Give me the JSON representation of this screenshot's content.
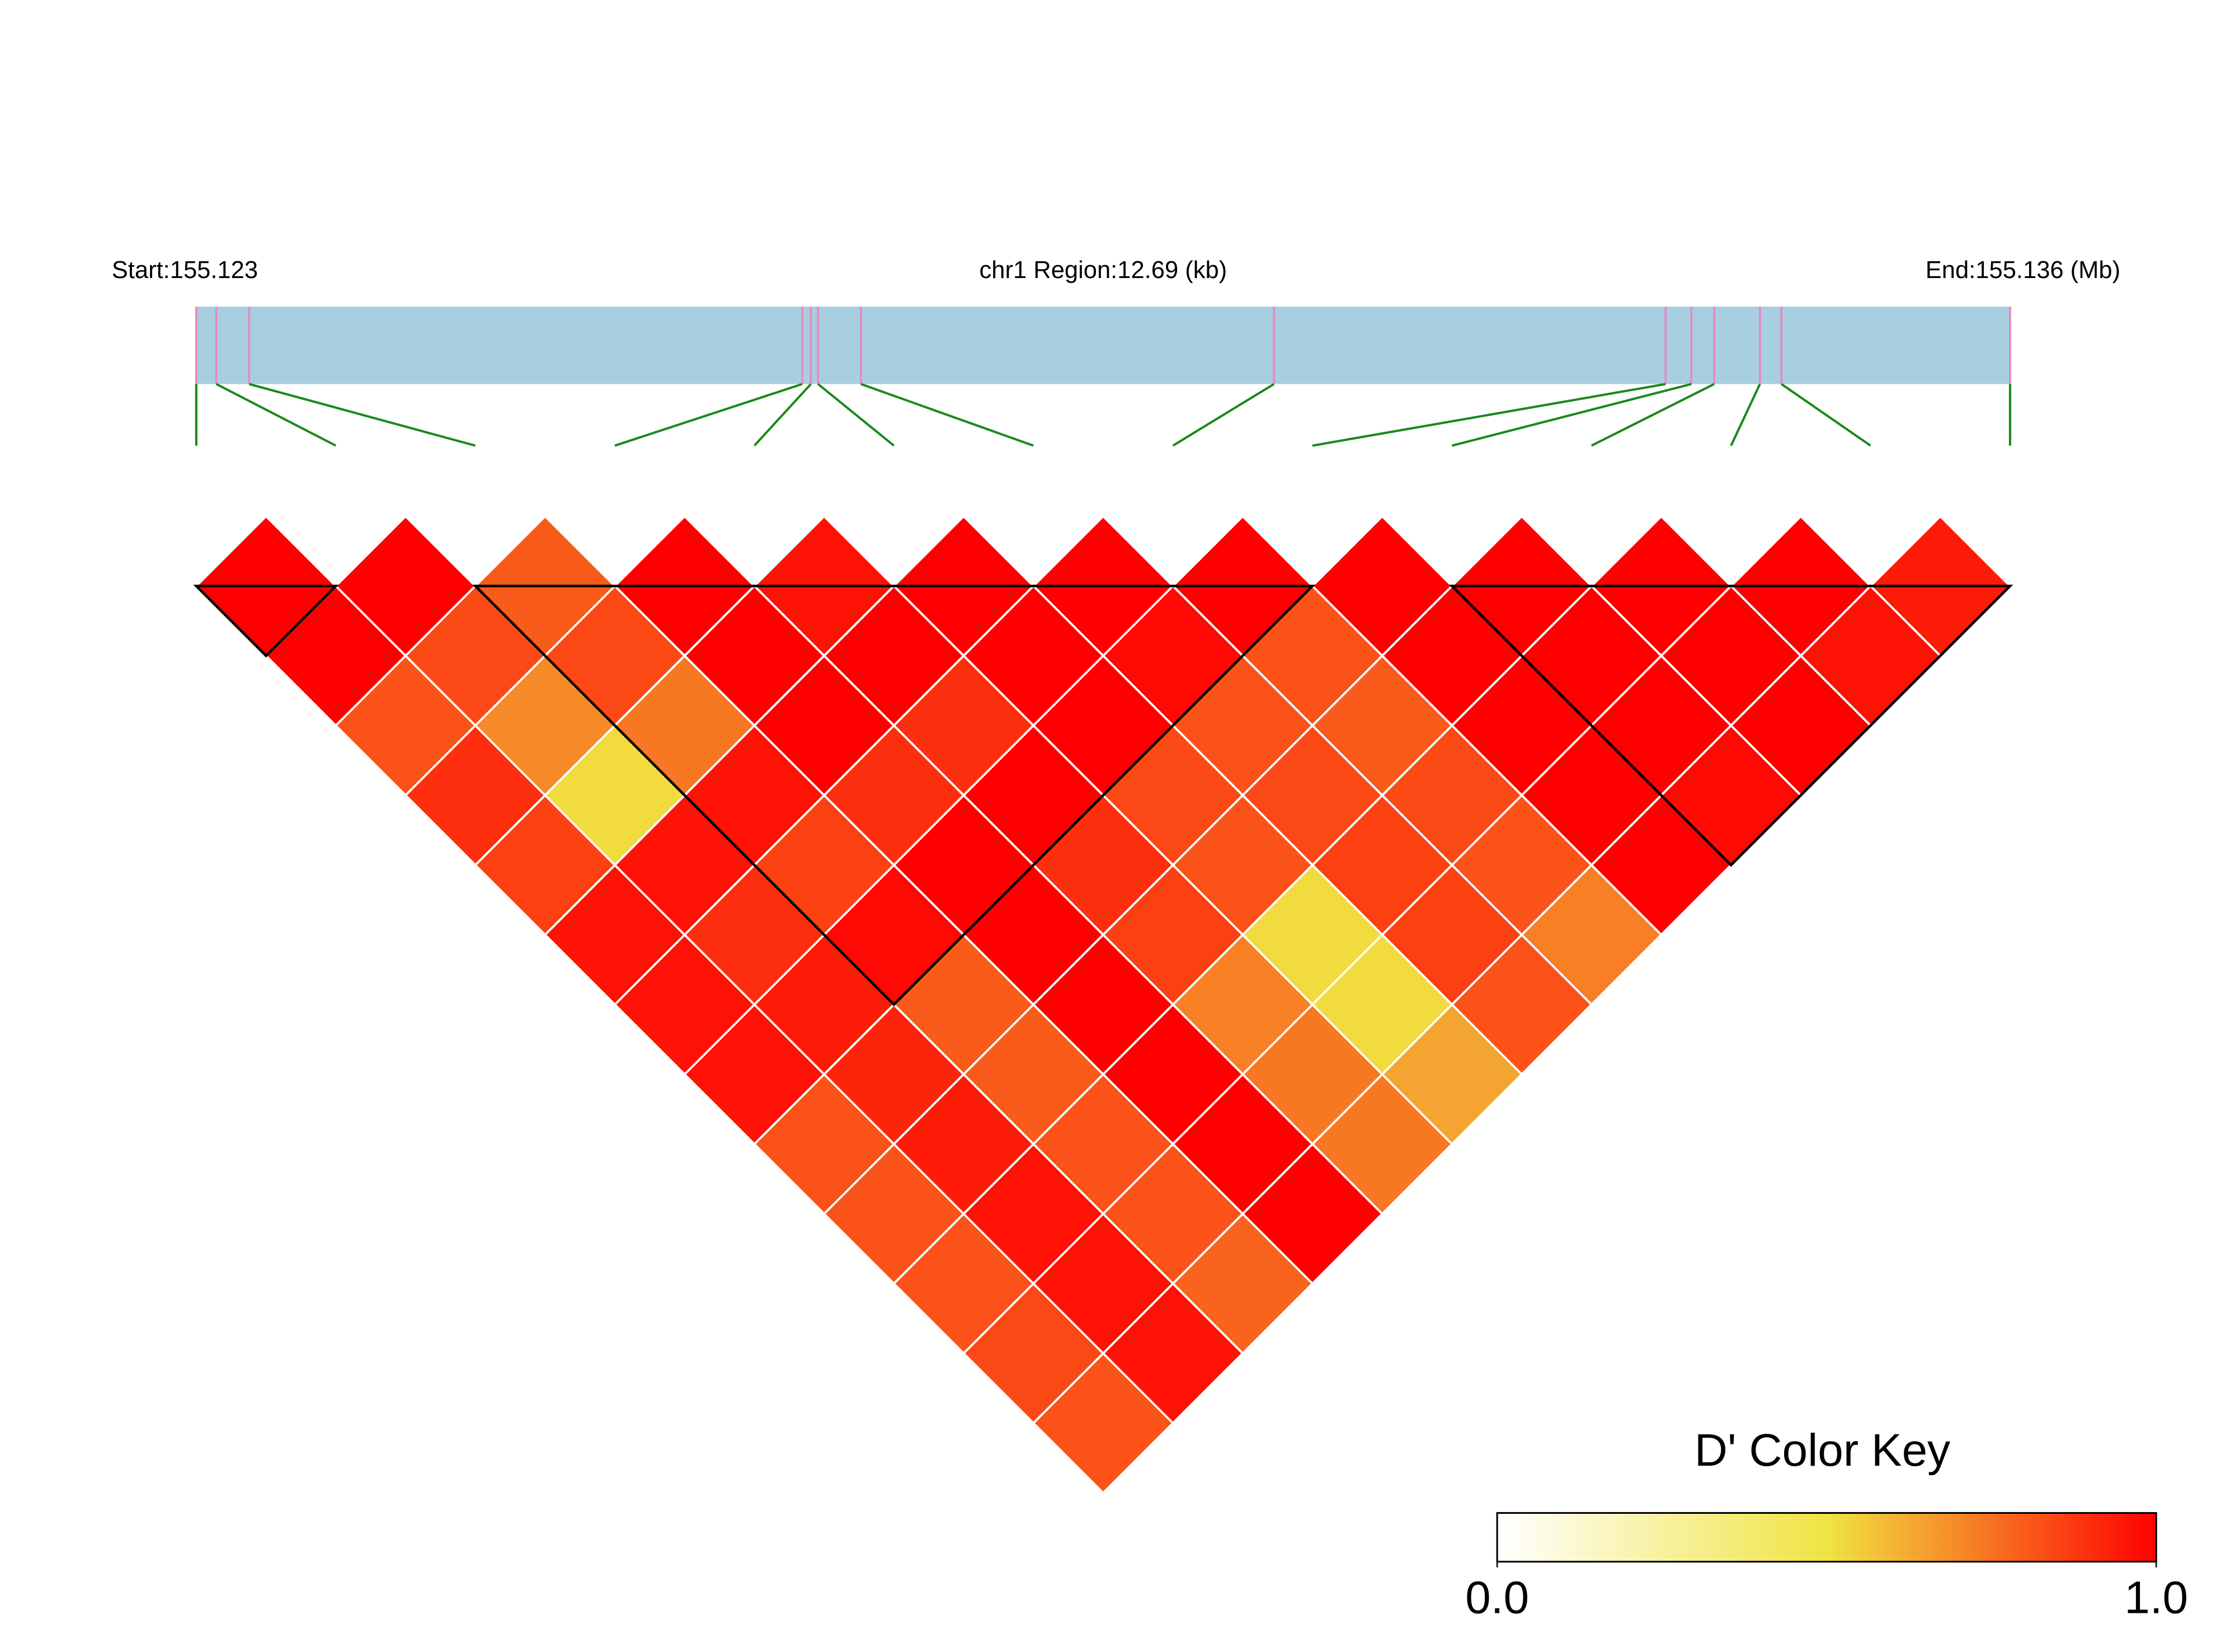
{
  "chart_data": {
    "type": "ld_heatmap",
    "start_label": "Start:155.123",
    "region_label": "chr1 Region:12.69 (kb)",
    "end_label": "End:155.136 (Mb)",
    "key_title": "D' Color Key",
    "xlim": [
      0,
      12.69
    ],
    "snp_positions": [
      0,
      0.14,
      0.37,
      4.24,
      4.3,
      4.35,
      4.65,
      7.54,
      10.28,
      10.46,
      10.62,
      10.94,
      11.09,
      12.69
    ],
    "ld": [
      [
        1,
        1,
        0.8,
        1,
        0.96,
        1,
        1,
        1,
        1,
        1,
        1,
        1,
        0.94
      ],
      [
        1,
        0.84,
        0.84,
        1,
        1,
        1,
        0.98,
        0.82,
        1,
        1,
        1,
        0.96
      ],
      [
        0.82,
        0.7,
        0.74,
        1,
        0.9,
        1,
        0.82,
        0.8,
        1,
        1,
        1
      ],
      [
        0.9,
        0.52,
        0.96,
        0.9,
        1,
        0.84,
        0.84,
        0.84,
        1,
        0.98
      ],
      [
        0.86,
        0.96,
        0.86,
        1,
        0.9,
        0.82,
        0.86,
        0.82,
        1
      ],
      [
        0.96,
        0.9,
        0.98,
        1,
        0.86,
        0.52,
        0.86,
        0.72
      ],
      [
        0.96,
        0.94,
        0.8,
        1,
        0.72,
        0.52,
        0.82
      ],
      [
        0.96,
        0.92,
        0.8,
        1,
        0.74,
        0.64
      ],
      [
        0.82,
        0.94,
        0.82,
        1,
        0.74
      ],
      [
        0.82,
        0.96,
        0.82,
        1
      ],
      [
        0.82,
        0.96,
        0.78
      ],
      [
        0.84,
        0.96
      ],
      [
        0.82
      ]
    ],
    "blocks": [
      [
        0,
        1
      ],
      [
        2,
        8
      ],
      [
        9,
        13
      ]
    ],
    "colors": [
      "#ffffff",
      "#f0e442",
      "#ff0000"
    ],
    "bar_color": "#a8cfe0",
    "snp_color": "#e88ac0",
    "link_color": "#1a8a1a",
    "key_ticks": [
      {
        "value": 0,
        "label": "0.0"
      },
      {
        "value": 1,
        "label": "1.0"
      }
    ]
  }
}
